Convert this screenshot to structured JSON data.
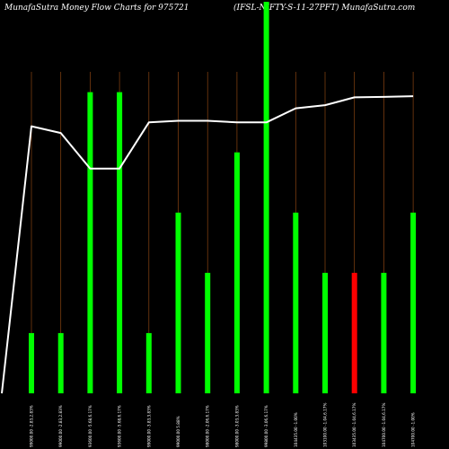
{
  "chart_data": {
    "type": "bar",
    "title_left": "MunafaSutra  Money Flow  Charts for 975721",
    "title_right": "(IFSL-NIFTY-S-11-27PFT) MunafaSutra.com",
    "categories": [
      "99000.00 -2.83,2.83%",
      "99000.00 -2.83,2.83%",
      "93600.00 -5.68,6.17%",
      "93600.00 -5.68,6.17%",
      "99000.00 -3.83,3.83%",
      "99000.00 5.88%",
      "98000.00 -2.06,6.17%",
      "98000.00 -3.03,3.83%",
      "99800.00 -3.06,6.17%",
      "104435.00 -1.00%",
      "103100.00 -1.04,6.17%",
      "103435.00 -1.04,6.17%",
      "104700.00 -1.04,6.17%",
      "104700.00 -1.00%"
    ],
    "bars": [
      {
        "value": 2,
        "color": "#00ff00"
      },
      {
        "value": 2,
        "color": "#00ff00"
      },
      {
        "value": 10,
        "color": "#00ff00"
      },
      {
        "value": 10,
        "color": "#00ff00"
      },
      {
        "value": 2,
        "color": "#00ff00"
      },
      {
        "value": 6,
        "color": "#00ff00"
      },
      {
        "value": 4,
        "color": "#00ff00"
      },
      {
        "value": 8,
        "color": "#00ff00"
      },
      {
        "value": 13,
        "color": "#00ff00"
      },
      {
        "value": 6,
        "color": "#00ff00"
      },
      {
        "value": 4,
        "color": "#00ff00"
      },
      {
        "value": 4,
        "color": "#ff0000"
      },
      {
        "value": 4,
        "color": "#00ff00"
      },
      {
        "value": 6,
        "color": "#00ff00"
      }
    ],
    "price_line": {
      "color": "#ffffff",
      "start_value": 0,
      "values": [
        68.2,
        66.5,
        57.4,
        57.4,
        69.2,
        69.6,
        69.6,
        69.2,
        69.2,
        72.8,
        73.6,
        75.6,
        75.7,
        75.9
      ]
    },
    "ylim": [
      0,
      100
    ],
    "bar_ylim": [
      0,
      13
    ],
    "background": "#000000",
    "gridline_color": "#8b4513",
    "text_color": "#ffffff"
  }
}
